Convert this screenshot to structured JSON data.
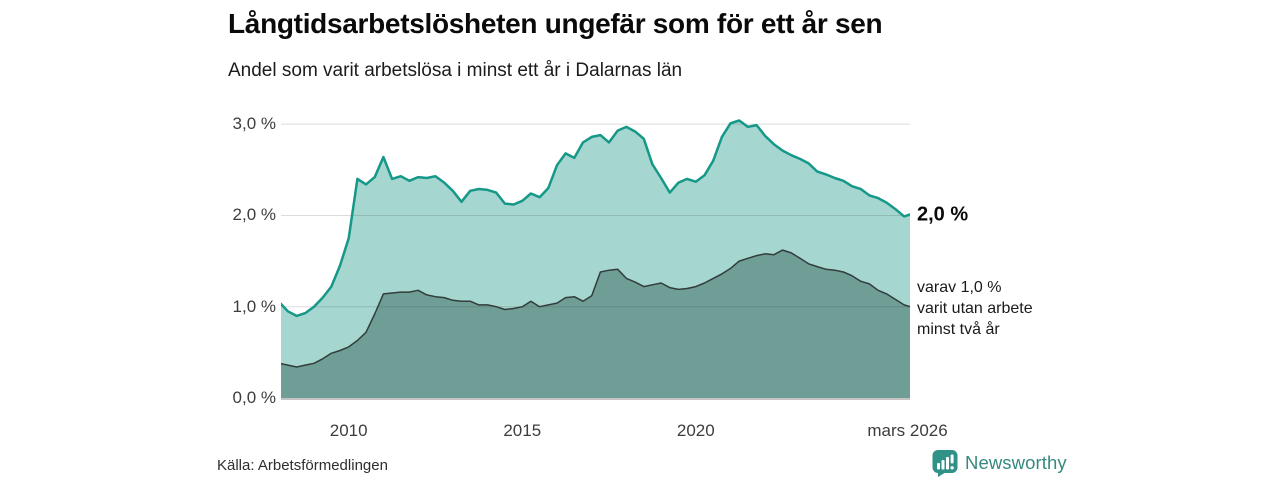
{
  "header": {
    "title": "Långtidsarbetslösheten ungefär som för ett år sen",
    "subtitle": "Andel som varit arbetslösa i minst ett år i Dalarnas län"
  },
  "chart_data": {
    "type": "area",
    "title": "Långtidsarbetslösheten ungefär som för ett år sen",
    "subtitle": "Andel som varit arbetslösa i minst ett år i Dalarnas län",
    "grid": true,
    "legend_position": "right-of-line-ends",
    "xlim": [
      2008.05,
      2026.17
    ],
    "ylim": [
      0,
      3.21
    ],
    "y_ticks": [
      {
        "value": 0,
        "label": "0,0 %"
      },
      {
        "value": 1,
        "label": "1,0 %"
      },
      {
        "value": 2,
        "label": "2,0 %"
      },
      {
        "value": 3,
        "label": "3,0 %"
      }
    ],
    "x_ticks": [
      {
        "value": 2010,
        "label": "2010"
      },
      {
        "value": 2015,
        "label": "2015"
      },
      {
        "value": 2020,
        "label": "2020"
      },
      {
        "value": 2026.1,
        "label": "mars 2026"
      }
    ],
    "x": [
      2008,
      2008.25,
      2008.5,
      2008.75,
      2009,
      2009.25,
      2009.5,
      2009.75,
      2010,
      2010.25,
      2010.5,
      2010.75,
      2011,
      2011.25,
      2011.5,
      2011.75,
      2012,
      2012.25,
      2012.5,
      2012.75,
      2013,
      2013.25,
      2013.5,
      2013.75,
      2014,
      2014.25,
      2014.5,
      2014.75,
      2015,
      2015.25,
      2015.5,
      2015.75,
      2016,
      2016.25,
      2016.5,
      2016.75,
      2017,
      2017.25,
      2017.5,
      2017.75,
      2018,
      2018.25,
      2018.5,
      2018.75,
      2019,
      2019.25,
      2019.5,
      2019.75,
      2020,
      2020.25,
      2020.5,
      2020.75,
      2021,
      2021.25,
      2021.5,
      2021.75,
      2022,
      2022.25,
      2022.5,
      2022.75,
      2023,
      2023.25,
      2023.5,
      2023.75,
      2024,
      2024.25,
      2024.5,
      2024.75,
      2025,
      2025.25,
      2025.5,
      2025.75,
      2026,
      2026.17
    ],
    "series": [
      {
        "name": "Andel som varit arbetslösa i minst ett år",
        "unit": "%",
        "color": "#169889",
        "fill": "#a5d6cf",
        "end_value_label": "2,0 %",
        "values": [
          1.05,
          0.95,
          0.9,
          0.93,
          1.0,
          1.1,
          1.22,
          1.45,
          1.75,
          2.4,
          2.34,
          2.42,
          2.64,
          2.4,
          2.43,
          2.38,
          2.42,
          2.41,
          2.43,
          2.36,
          2.27,
          2.15,
          2.27,
          2.29,
          2.28,
          2.25,
          2.13,
          2.12,
          2.16,
          2.24,
          2.2,
          2.3,
          2.55,
          2.68,
          2.63,
          2.8,
          2.86,
          2.88,
          2.8,
          2.93,
          2.97,
          2.92,
          2.84,
          2.56,
          2.41,
          2.25,
          2.36,
          2.4,
          2.37,
          2.44,
          2.6,
          2.86,
          3.01,
          3.04,
          2.97,
          2.99,
          2.87,
          2.78,
          2.71,
          2.66,
          2.62,
          2.57,
          2.48,
          2.45,
          2.41,
          2.38,
          2.32,
          2.29,
          2.22,
          2.19,
          2.14,
          2.07,
          1.99,
          2.01
        ]
      },
      {
        "name": "varav utan arbete minst två år",
        "unit": "%",
        "color": "#333d3b",
        "fill": "#6f9e97",
        "end_value_label": "varav 1,0 %",
        "values": [
          0.38,
          0.36,
          0.34,
          0.36,
          0.38,
          0.43,
          0.49,
          0.52,
          0.56,
          0.63,
          0.72,
          0.92,
          1.14,
          1.15,
          1.16,
          1.16,
          1.18,
          1.13,
          1.11,
          1.1,
          1.07,
          1.06,
          1.06,
          1.02,
          1.02,
          1.0,
          0.97,
          0.98,
          1.0,
          1.06,
          1.0,
          1.02,
          1.04,
          1.1,
          1.11,
          1.06,
          1.12,
          1.38,
          1.4,
          1.41,
          1.31,
          1.27,
          1.22,
          1.24,
          1.26,
          1.21,
          1.19,
          1.2,
          1.22,
          1.26,
          1.31,
          1.36,
          1.42,
          1.5,
          1.53,
          1.56,
          1.58,
          1.57,
          1.62,
          1.59,
          1.53,
          1.47,
          1.44,
          1.41,
          1.4,
          1.38,
          1.34,
          1.28,
          1.25,
          1.18,
          1.14,
          1.08,
          1.02,
          1.0
        ]
      }
    ],
    "annotations": [
      {
        "text": "2,0 %",
        "bold": true
      },
      {
        "lines": [
          "varav 1,0 %",
          "varit utan arbete",
          "minst två år"
        ]
      }
    ],
    "colors": {
      "grid": "#d9d9d9",
      "axis": "#c4c4c4",
      "tick_text": "#3d3d3d",
      "brand_teal": "#2e9286"
    }
  },
  "footer": {
    "source": "Källa: Arbetsförmedlingen",
    "brand": "Newsworthy"
  }
}
